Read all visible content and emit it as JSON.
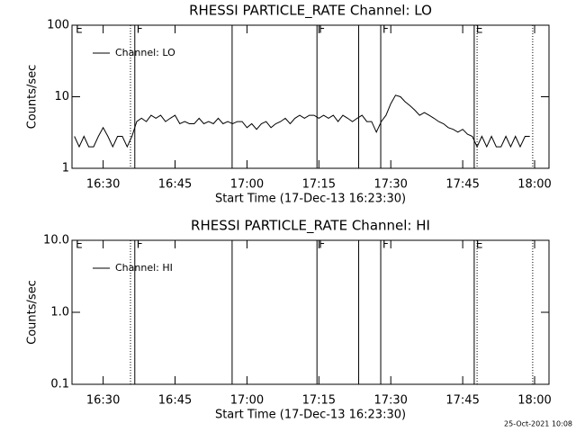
{
  "chart_data": [
    {
      "type": "line",
      "title": "RHESSI PARTICLE_RATE Channel: LO",
      "ylabel": "Counts/sec",
      "xlabel": "Start Time (17-Dec-13 16:23:30)",
      "ylog": true,
      "ylim": [
        1,
        100
      ],
      "yticks": [
        1,
        10,
        100
      ],
      "xlim": [
        23.5,
        123
      ],
      "xticks": [
        {
          "value": 30,
          "label": "16:30"
        },
        {
          "value": 45,
          "label": "16:45"
        },
        {
          "value": 60,
          "label": "17:00"
        },
        {
          "value": 75,
          "label": "17:15"
        },
        {
          "value": 90,
          "label": "17:30"
        },
        {
          "value": 105,
          "label": "17:45"
        },
        {
          "value": 120,
          "label": "18:00"
        }
      ],
      "legend": "top-left",
      "x": [
        24,
        25,
        26,
        27,
        28,
        29,
        30,
        31,
        32,
        33,
        34,
        35,
        36,
        37,
        38,
        39,
        40,
        41,
        42,
        43,
        44,
        45,
        46,
        47,
        48,
        49,
        50,
        51,
        52,
        53,
        54,
        55,
        56,
        57,
        58,
        59,
        60,
        61,
        62,
        63,
        64,
        65,
        66,
        67,
        68,
        69,
        70,
        71,
        72,
        73,
        74,
        75,
        76,
        77,
        78,
        79,
        80,
        81,
        82,
        83,
        84,
        85,
        86,
        87,
        88,
        89,
        90,
        91,
        92,
        93,
        94,
        95,
        96,
        97,
        98,
        99,
        100,
        101,
        102,
        103,
        104,
        105,
        106,
        107,
        108,
        109,
        110,
        111,
        112,
        113,
        114,
        115,
        116,
        117,
        118,
        119
      ],
      "series": [
        {
          "name": "Channel: LO",
          "color": "#000000",
          "values": [
            2.8,
            2,
            2.8,
            2,
            2,
            2.8,
            3.7,
            2.8,
            2,
            2.8,
            2.8,
            2,
            2.8,
            4.5,
            5,
            4.5,
            5.5,
            5,
            5.5,
            4.5,
            5,
            5.5,
            4.2,
            4.5,
            4.2,
            4.2,
            5,
            4.2,
            4.5,
            4.2,
            5,
            4.2,
            4.5,
            4.2,
            4.5,
            4.5,
            3.7,
            4.2,
            3.5,
            4.2,
            4.5,
            3.7,
            4.2,
            4.5,
            5,
            4.2,
            5,
            5.5,
            5,
            5.5,
            5.5,
            5,
            5.5,
            5,
            5.5,
            4.5,
            5.5,
            5,
            4.5,
            5,
            5.5,
            4.5,
            4.5,
            3.2,
            4.5,
            5.5,
            8,
            10.5,
            10,
            8.5,
            7.5,
            6.5,
            5.5,
            6,
            5.5,
            5,
            4.5,
            4.2,
            3.7,
            3.5,
            3.2,
            3.5,
            3,
            2.8,
            2,
            2.8,
            2,
            2.8,
            2,
            2,
            2.8,
            2,
            2.8,
            2,
            2.8,
            2.8
          ]
        }
      ],
      "vlines": [
        {
          "x": 35.7,
          "style": "dotted"
        },
        {
          "x": 36.6,
          "style": "solid"
        },
        {
          "x": 56.9,
          "style": "solid"
        },
        {
          "x": 74.6,
          "style": "solid"
        },
        {
          "x": 83.3,
          "style": "solid"
        },
        {
          "x": 87.9,
          "style": "solid"
        },
        {
          "x": 107.4,
          "style": "solid"
        },
        {
          "x": 108.0,
          "style": "dotted"
        },
        {
          "x": 119.6,
          "style": "dotted"
        }
      ],
      "flags": [
        {
          "x": 23.9,
          "label": "E"
        },
        {
          "x": 36.6,
          "label": "F"
        },
        {
          "x": 74.6,
          "label": "F"
        },
        {
          "x": 87.9,
          "label": "F"
        },
        {
          "x": 107.4,
          "label": "E"
        }
      ]
    },
    {
      "type": "line",
      "title": "RHESSI PARTICLE_RATE Channel: HI",
      "ylabel": "Counts/sec",
      "xlabel": "Start Time (17-Dec-13 16:23:30)",
      "ylog": true,
      "ylim": [
        0.1,
        10
      ],
      "yticks": [
        0.1,
        {
          "value": 1,
          "label": "1.0"
        },
        {
          "value": 10,
          "label": "10.0"
        }
      ],
      "xlim": [
        23.5,
        123
      ],
      "xticks": [
        {
          "value": 30,
          "label": "16:30"
        },
        {
          "value": 45,
          "label": "16:45"
        },
        {
          "value": 60,
          "label": "17:00"
        },
        {
          "value": 75,
          "label": "17:15"
        },
        {
          "value": 90,
          "label": "17:30"
        },
        {
          "value": 105,
          "label": "17:45"
        },
        {
          "value": 120,
          "label": "18:00"
        }
      ],
      "legend": "top-left",
      "x": [],
      "series": [
        {
          "name": "Channel: HI",
          "color": "#000000",
          "values": []
        }
      ],
      "vlines": [
        {
          "x": 35.7,
          "style": "dotted"
        },
        {
          "x": 36.6,
          "style": "solid"
        },
        {
          "x": 56.9,
          "style": "solid"
        },
        {
          "x": 74.6,
          "style": "solid"
        },
        {
          "x": 83.3,
          "style": "solid"
        },
        {
          "x": 87.9,
          "style": "solid"
        },
        {
          "x": 107.4,
          "style": "solid"
        },
        {
          "x": 108.0,
          "style": "dotted"
        },
        {
          "x": 119.6,
          "style": "dotted"
        }
      ],
      "flags": [
        {
          "x": 23.9,
          "label": "E"
        },
        {
          "x": 36.6,
          "label": "F"
        },
        {
          "x": 74.6,
          "label": "F"
        },
        {
          "x": 87.9,
          "label": "F"
        },
        {
          "x": 107.4,
          "label": "E"
        }
      ]
    }
  ],
  "footer": "25-Oct-2021 10:08"
}
